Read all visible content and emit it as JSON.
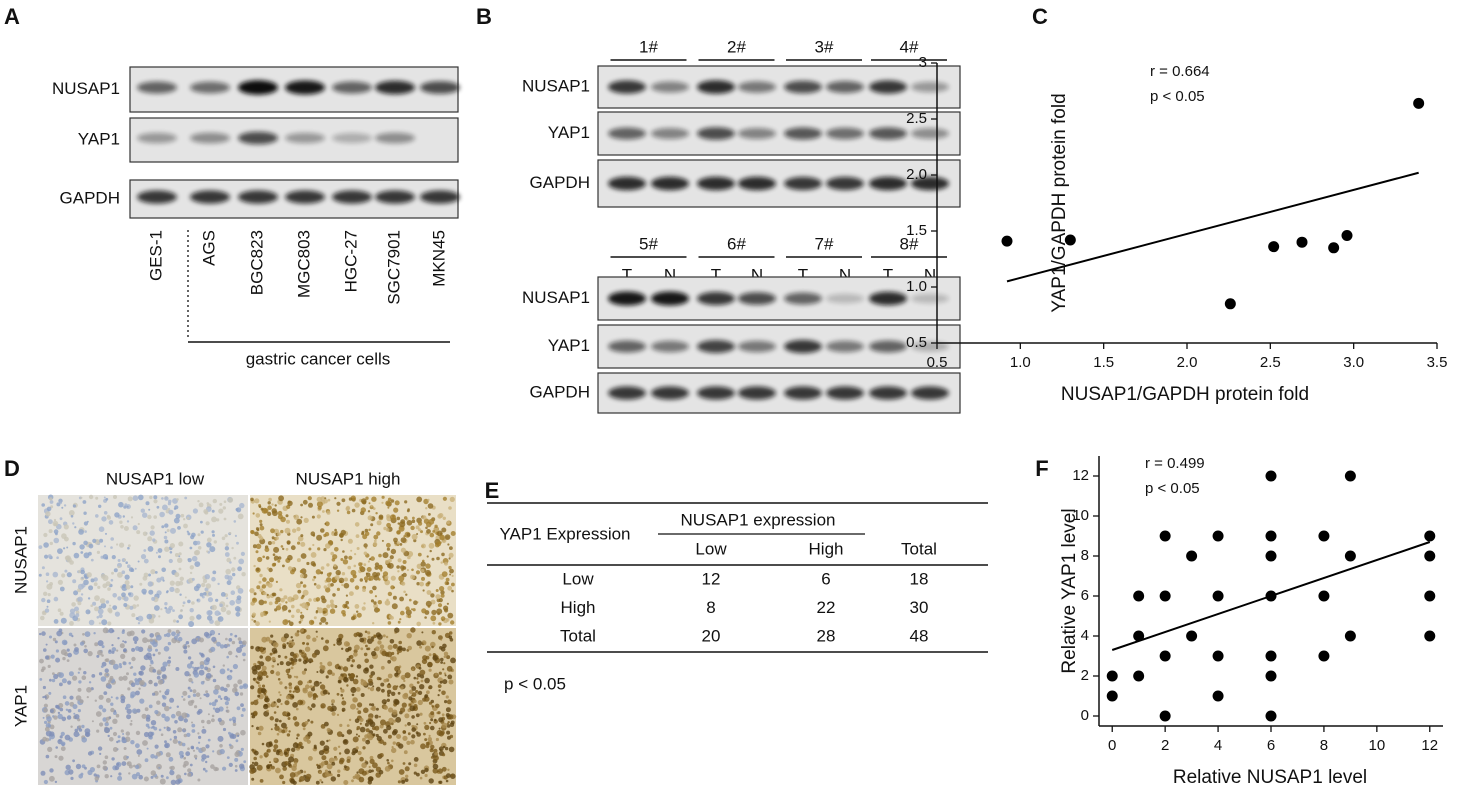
{
  "panel_labels": [
    "A",
    "B",
    "C",
    "D",
    "E",
    "F"
  ],
  "panel_a": {
    "rows": [
      "NUSAP1",
      "YAP1",
      "GAPDH"
    ],
    "lanes": [
      "GES-1",
      "AGS",
      "BGC823",
      "MGC803",
      "HGC-27",
      "SGC7901",
      "MKN45"
    ],
    "group_label": "gastric cancer cells"
  },
  "panel_b": {
    "rows": [
      "NUSAP1",
      "YAP1",
      "GAPDH"
    ],
    "sample_groups": [
      [
        "1#",
        "2#",
        "3#",
        "4#"
      ],
      [
        "5#",
        "6#",
        "7#",
        "8#"
      ]
    ],
    "lane_labels": [
      "T",
      "N"
    ]
  },
  "panel_d": {
    "columns": [
      "NUSAP1 low",
      "NUSAP1 high"
    ],
    "rows": [
      "NUSAP1",
      "YAP1"
    ]
  },
  "panel_e": {
    "table": {
      "row_header": "YAP1  Expression",
      "column_group": "NUSAP1 expression",
      "columns": [
        "Low",
        "High",
        "Total"
      ],
      "rows": [
        [
          "Low",
          12,
          6,
          18
        ],
        [
          "High",
          8,
          22,
          30
        ],
        [
          "Total",
          20,
          28,
          48
        ]
      ]
    },
    "note": "p < 0.05"
  },
  "chart_data": [
    {
      "type": "scatter",
      "xlabel": "NUSAP1/GAPDH protein fold",
      "ylabel": "YAP1/GAPDH protein fold",
      "annotations": [
        "r = 0.664",
        "p < 0.05"
      ],
      "color": "#000000",
      "x": [
        0.92,
        1.3,
        2.26,
        2.52,
        2.69,
        2.88,
        2.96,
        3.39
      ],
      "values": [
        1.41,
        1.42,
        0.85,
        1.36,
        1.4,
        1.35,
        1.46,
        2.64
      ],
      "trendline": {
        "x": [
          0.92,
          3.39
        ],
        "values": [
          1.05,
          2.02
        ]
      },
      "xlim": [
        0.5,
        3.5
      ],
      "ylim": [
        0.5,
        3
      ],
      "xticks": [
        0.5,
        {
          "value": 1,
          "label": "1.0"
        },
        1.5,
        {
          "value": 2,
          "label": "2.0"
        },
        2.5,
        {
          "value": 3,
          "label": "3.0"
        },
        3.5
      ],
      "yticks": [
        0.5,
        {
          "value": 1,
          "label": "1.0"
        },
        1.5,
        {
          "value": 2,
          "label": "2.0"
        },
        2.5,
        3
      ]
    },
    {
      "type": "scatter",
      "xlabel": "Relative NUSAP1 level",
      "ylabel": "Relative YAP1 level",
      "annotations": [
        "r = 0.499",
        "p < 0.05"
      ],
      "color": "#000000",
      "x": [
        0,
        0,
        1,
        1,
        1,
        2,
        2,
        2,
        2,
        3,
        3,
        4,
        4,
        4,
        4,
        6,
        6,
        6,
        6,
        6,
        6,
        6,
        8,
        8,
        8,
        9,
        9,
        9,
        12,
        12,
        12,
        12
      ],
      "values": [
        2,
        1,
        6,
        4,
        2,
        9,
        6,
        3,
        0,
        8,
        4,
        9,
        6,
        3,
        1,
        12,
        9,
        8,
        6,
        3,
        2,
        0,
        9,
        6,
        3,
        12,
        8,
        4,
        9,
        8,
        6,
        4
      ],
      "trendline": {
        "x": [
          0,
          12
        ],
        "values": [
          3.3,
          8.7
        ]
      },
      "xlim": [
        -0.5,
        12.5
      ],
      "ylim": [
        -0.5,
        13
      ],
      "xticks": [
        0,
        2,
        4,
        6,
        8,
        10,
        12
      ],
      "yticks": [
        0,
        2,
        4,
        6,
        8,
        10,
        12
      ]
    }
  ]
}
